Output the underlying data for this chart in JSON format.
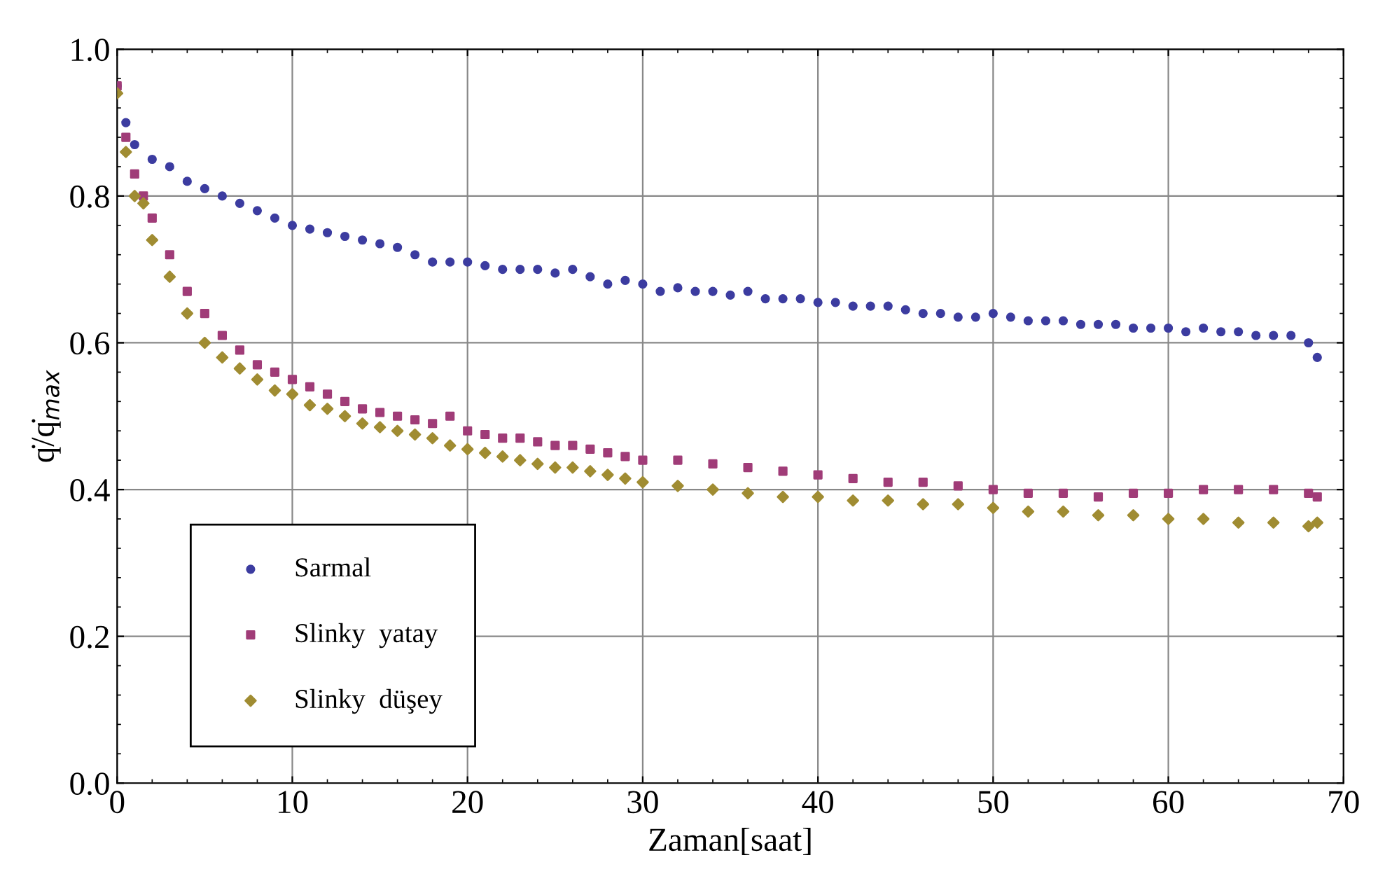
{
  "chart_data": {
    "type": "scatter",
    "xlabel": "Zaman[saat]",
    "ylabel": "q̇/q̇$_{max}$",
    "xlim": [
      0,
      70
    ],
    "xticks": [
      0,
      10,
      20,
      30,
      40,
      50,
      60,
      70
    ],
    "ylim": [
      0,
      1
    ],
    "yticks": [
      {
        "value": 0,
        "label": "0.0"
      },
      {
        "value": 0.2,
        "label": "0.2"
      },
      {
        "value": 0.4,
        "label": "0.4"
      },
      {
        "value": 0.6,
        "label": "0.6"
      },
      {
        "value": 0.8,
        "label": "0.8"
      },
      {
        "value": 1,
        "label": "1.0"
      }
    ],
    "grid": true,
    "legend": "bottom left",
    "series": [
      {
        "name": "Sarmal",
        "color": "#3c3ca0",
        "marker": "circle",
        "x": [
          0,
          0.5,
          1,
          2,
          3,
          4,
          5,
          6,
          7,
          8,
          9,
          10,
          11,
          12,
          13,
          14,
          15,
          16,
          17,
          18,
          19,
          20,
          21,
          22,
          23,
          24,
          25,
          26,
          27,
          28,
          29,
          30,
          31,
          32,
          33,
          34,
          35,
          36,
          37,
          38,
          39,
          40,
          41,
          42,
          43,
          44,
          45,
          46,
          47,
          48,
          49,
          50,
          51,
          52,
          53,
          54,
          55,
          56,
          57,
          58,
          59,
          60,
          61,
          62,
          63,
          64,
          65,
          66,
          67,
          68,
          68.5
        ],
        "values": [
          0.95,
          0.9,
          0.87,
          0.85,
          0.84,
          0.82,
          0.81,
          0.8,
          0.79,
          0.78,
          0.77,
          0.76,
          0.755,
          0.75,
          0.745,
          0.74,
          0.735,
          0.73,
          0.72,
          0.71,
          0.71,
          0.71,
          0.705,
          0.7,
          0.7,
          0.7,
          0.695,
          0.7,
          0.69,
          0.68,
          0.685,
          0.68,
          0.67,
          0.675,
          0.67,
          0.67,
          0.665,
          0.67,
          0.66,
          0.66,
          0.66,
          0.655,
          0.655,
          0.65,
          0.65,
          0.65,
          0.645,
          0.64,
          0.64,
          0.635,
          0.635,
          0.64,
          0.635,
          0.63,
          0.63,
          0.63,
          0.625,
          0.625,
          0.625,
          0.62,
          0.62,
          0.62,
          0.615,
          0.62,
          0.615,
          0.615,
          0.61,
          0.61,
          0.61,
          0.6,
          0.58
        ]
      },
      {
        "name": "Slinky  yatay",
        "color": "#a03c78",
        "marker": "square",
        "x": [
          0,
          0.5,
          1,
          1.5,
          2,
          3,
          4,
          5,
          6,
          7,
          8,
          9,
          10,
          11,
          12,
          13,
          14,
          15,
          16,
          17,
          18,
          19,
          20,
          21,
          22,
          23,
          24,
          25,
          26,
          27,
          28,
          29,
          30,
          32,
          34,
          36,
          38,
          40,
          42,
          44,
          46,
          48,
          50,
          52,
          54,
          56,
          58,
          60,
          62,
          64,
          66,
          68,
          68.5
        ],
        "values": [
          0.95,
          0.88,
          0.83,
          0.8,
          0.77,
          0.72,
          0.67,
          0.64,
          0.61,
          0.59,
          0.57,
          0.56,
          0.55,
          0.54,
          0.53,
          0.52,
          0.51,
          0.505,
          0.5,
          0.495,
          0.49,
          0.5,
          0.48,
          0.475,
          0.47,
          0.47,
          0.465,
          0.46,
          0.46,
          0.455,
          0.45,
          0.445,
          0.44,
          0.44,
          0.435,
          0.43,
          0.425,
          0.42,
          0.415,
          0.41,
          0.41,
          0.405,
          0.4,
          0.395,
          0.395,
          0.39,
          0.395,
          0.395,
          0.4,
          0.4,
          0.4,
          0.395,
          0.39
        ]
      },
      {
        "name": "Slinky  düşey",
        "color": "#a08c32",
        "marker": "diamond",
        "x": [
          0,
          0.5,
          1,
          1.5,
          2,
          3,
          4,
          5,
          6,
          7,
          8,
          9,
          10,
          11,
          12,
          13,
          14,
          15,
          16,
          17,
          18,
          19,
          20,
          21,
          22,
          23,
          24,
          25,
          26,
          27,
          28,
          29,
          30,
          32,
          34,
          36,
          38,
          40,
          42,
          44,
          46,
          48,
          50,
          52,
          54,
          56,
          58,
          60,
          62,
          64,
          66,
          68,
          68.5
        ],
        "values": [
          0.94,
          0.86,
          0.8,
          0.79,
          0.74,
          0.69,
          0.64,
          0.6,
          0.58,
          0.565,
          0.55,
          0.535,
          0.53,
          0.515,
          0.51,
          0.5,
          0.49,
          0.485,
          0.48,
          0.475,
          0.47,
          0.46,
          0.455,
          0.45,
          0.445,
          0.44,
          0.435,
          0.43,
          0.43,
          0.425,
          0.42,
          0.415,
          0.41,
          0.405,
          0.4,
          0.395,
          0.39,
          0.39,
          0.385,
          0.385,
          0.38,
          0.38,
          0.375,
          0.37,
          0.37,
          0.365,
          0.365,
          0.36,
          0.36,
          0.355,
          0.355,
          0.35,
          0.355
        ]
      }
    ]
  }
}
